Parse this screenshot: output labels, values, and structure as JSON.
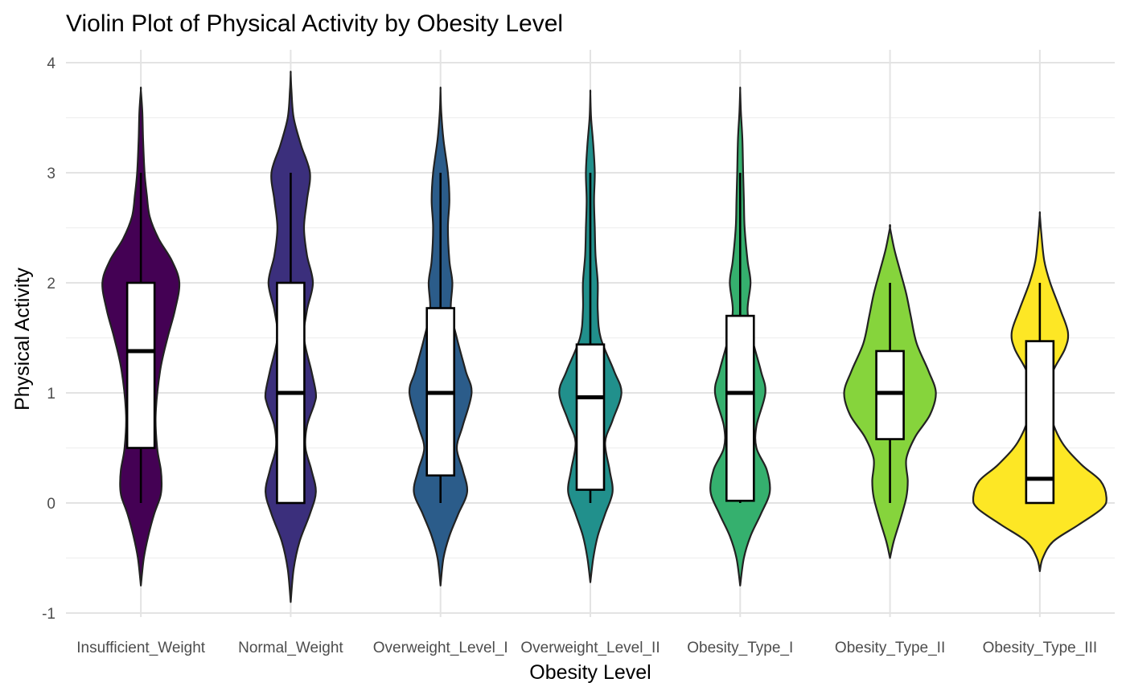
{
  "chart_data": {
    "type": "violin",
    "title": "Violin Plot of Physical Activity by Obesity Level",
    "xlabel": "Obesity Level",
    "ylabel": "Physical Activity",
    "ylim": [
      -1.1,
      4.13
    ],
    "yticks": [
      -1,
      0,
      1,
      2,
      3,
      4
    ],
    "ytick_labels": [
      "-1",
      "0",
      "1",
      "2",
      "3",
      "4"
    ],
    "grid": true,
    "legend": "none",
    "categories": [
      "Insufficient_Weight",
      "Normal_Weight",
      "Overweight_Level_I",
      "Overweight_Level_II",
      "Obesity_Type_I",
      "Obesity_Type_II",
      "Obesity_Type_III"
    ],
    "fill_colors": [
      "#440154",
      "#3B2F7C",
      "#2B5C8A",
      "#21908C",
      "#35B06E",
      "#86D43C",
      "#FDE725"
    ],
    "violins": [
      {
        "name": "Insufficient_Weight",
        "min_extent": -0.75,
        "max_extent": 3.75,
        "profile": [
          [
            -0.75,
            0
          ],
          [
            -0.5,
            0.04
          ],
          [
            -0.3,
            0.1
          ],
          [
            -0.1,
            0.18
          ],
          [
            0.05,
            0.26
          ],
          [
            0.15,
            0.28
          ],
          [
            0.3,
            0.27
          ],
          [
            0.5,
            0.22
          ],
          [
            0.8,
            0.2
          ],
          [
            1.2,
            0.26
          ],
          [
            1.5,
            0.36
          ],
          [
            1.75,
            0.46
          ],
          [
            2.0,
            0.52
          ],
          [
            2.2,
            0.42
          ],
          [
            2.4,
            0.24
          ],
          [
            2.6,
            0.12
          ],
          [
            2.8,
            0.08
          ],
          [
            3.0,
            0.05
          ],
          [
            3.3,
            0.03
          ],
          [
            3.55,
            0.02
          ],
          [
            3.75,
            0
          ]
        ],
        "q1": 0.5,
        "median": 1.38,
        "q3": 2.0,
        "whisker_low": 0.0,
        "whisker_high": 3.0
      },
      {
        "name": "Normal_Weight",
        "min_extent": -0.9,
        "max_extent": 3.9,
        "profile": [
          [
            -0.9,
            0
          ],
          [
            -0.6,
            0.04
          ],
          [
            -0.35,
            0.12
          ],
          [
            -0.1,
            0.26
          ],
          [
            0.1,
            0.34
          ],
          [
            0.3,
            0.28
          ],
          [
            0.5,
            0.2
          ],
          [
            0.7,
            0.22
          ],
          [
            0.9,
            0.32
          ],
          [
            1.0,
            0.34
          ],
          [
            1.2,
            0.28
          ],
          [
            1.5,
            0.18
          ],
          [
            1.75,
            0.22
          ],
          [
            2.0,
            0.3
          ],
          [
            2.25,
            0.22
          ],
          [
            2.5,
            0.18
          ],
          [
            2.75,
            0.22
          ],
          [
            3.0,
            0.26
          ],
          [
            3.25,
            0.14
          ],
          [
            3.5,
            0.04
          ],
          [
            3.75,
            0.01
          ],
          [
            3.9,
            0
          ]
        ],
        "q1": 0.0,
        "median": 1.0,
        "q3": 2.0,
        "whisker_low": 0.0,
        "whisker_high": 3.0
      },
      {
        "name": "Overweight_Level_I",
        "min_extent": -0.75,
        "max_extent": 3.75,
        "profile": [
          [
            -0.75,
            0
          ],
          [
            -0.5,
            0.04
          ],
          [
            -0.3,
            0.12
          ],
          [
            -0.1,
            0.24
          ],
          [
            0.1,
            0.36
          ],
          [
            0.3,
            0.3
          ],
          [
            0.5,
            0.22
          ],
          [
            0.7,
            0.3
          ],
          [
            1.0,
            0.42
          ],
          [
            1.2,
            0.34
          ],
          [
            1.5,
            0.22
          ],
          [
            1.75,
            0.14
          ],
          [
            2.0,
            0.16
          ],
          [
            2.2,
            0.12
          ],
          [
            2.5,
            0.1
          ],
          [
            2.75,
            0.12
          ],
          [
            3.0,
            0.1
          ],
          [
            3.3,
            0.04
          ],
          [
            3.55,
            0.01
          ],
          [
            3.75,
            0
          ]
        ],
        "q1": 0.25,
        "median": 1.0,
        "q3": 1.77,
        "whisker_low": 0.0,
        "whisker_high": 3.0
      },
      {
        "name": "Overweight_Level_II",
        "min_extent": -0.72,
        "max_extent": 3.72,
        "profile": [
          [
            -0.72,
            0
          ],
          [
            -0.5,
            0.04
          ],
          [
            -0.3,
            0.1
          ],
          [
            -0.1,
            0.2
          ],
          [
            0.1,
            0.3
          ],
          [
            0.3,
            0.26
          ],
          [
            0.55,
            0.2
          ],
          [
            0.75,
            0.3
          ],
          [
            1.0,
            0.42
          ],
          [
            1.2,
            0.32
          ],
          [
            1.5,
            0.14
          ],
          [
            1.75,
            0.1
          ],
          [
            2.0,
            0.1
          ],
          [
            2.25,
            0.07
          ],
          [
            2.5,
            0.06
          ],
          [
            2.75,
            0.05
          ],
          [
            3.0,
            0.06
          ],
          [
            3.25,
            0.04
          ],
          [
            3.5,
            0.01
          ],
          [
            3.72,
            0
          ]
        ],
        "q1": 0.12,
        "median": 0.96,
        "q3": 1.44,
        "whisker_low": 0.0,
        "whisker_high": 3.0
      },
      {
        "name": "Obesity_Type_I",
        "min_extent": -0.75,
        "max_extent": 3.75,
        "profile": [
          [
            -0.75,
            0
          ],
          [
            -0.5,
            0.05
          ],
          [
            -0.3,
            0.14
          ],
          [
            -0.1,
            0.28
          ],
          [
            0.1,
            0.4
          ],
          [
            0.3,
            0.36
          ],
          [
            0.5,
            0.22
          ],
          [
            0.7,
            0.22
          ],
          [
            1.0,
            0.34
          ],
          [
            1.2,
            0.28
          ],
          [
            1.5,
            0.16
          ],
          [
            1.75,
            0.1
          ],
          [
            2.0,
            0.14
          ],
          [
            2.2,
            0.1
          ],
          [
            2.5,
            0.06
          ],
          [
            2.75,
            0.05
          ],
          [
            3.0,
            0.04
          ],
          [
            3.3,
            0.03
          ],
          [
            3.55,
            0.01
          ],
          [
            3.75,
            0
          ]
        ],
        "q1": 0.02,
        "median": 1.0,
        "q3": 1.7,
        "whisker_low": 0.0,
        "whisker_high": 3.0
      },
      {
        "name": "Obesity_Type_II",
        "min_extent": -0.5,
        "max_extent": 2.5,
        "profile": [
          [
            -0.5,
            0
          ],
          [
            -0.35,
            0.05
          ],
          [
            -0.15,
            0.14
          ],
          [
            0.05,
            0.22
          ],
          [
            0.2,
            0.24
          ],
          [
            0.4,
            0.22
          ],
          [
            0.6,
            0.34
          ],
          [
            0.8,
            0.54
          ],
          [
            1.0,
            0.62
          ],
          [
            1.2,
            0.52
          ],
          [
            1.45,
            0.36
          ],
          [
            1.7,
            0.28
          ],
          [
            1.9,
            0.22
          ],
          [
            2.1,
            0.14
          ],
          [
            2.3,
            0.06
          ],
          [
            2.5,
            0
          ]
        ],
        "q1": 0.58,
        "median": 1.0,
        "q3": 1.38,
        "whisker_low": 0.0,
        "whisker_high": 2.0
      },
      {
        "name": "Obesity_Type_III",
        "min_extent": -0.62,
        "max_extent": 2.62,
        "profile": [
          [
            -0.62,
            0
          ],
          [
            -0.5,
            0.04
          ],
          [
            -0.35,
            0.18
          ],
          [
            -0.2,
            0.52
          ],
          [
            -0.05,
            0.84
          ],
          [
            0.05,
            0.9
          ],
          [
            0.2,
            0.82
          ],
          [
            0.35,
            0.56
          ],
          [
            0.55,
            0.3
          ],
          [
            0.8,
            0.14
          ],
          [
            1.0,
            0.1
          ],
          [
            1.2,
            0.18
          ],
          [
            1.4,
            0.34
          ],
          [
            1.55,
            0.38
          ],
          [
            1.75,
            0.28
          ],
          [
            2.0,
            0.14
          ],
          [
            2.2,
            0.06
          ],
          [
            2.45,
            0.02
          ],
          [
            2.62,
            0
          ]
        ],
        "q1": 0.0,
        "median": 0.22,
        "q3": 1.47,
        "whisker_low": 0.0,
        "whisker_high": 2.0
      }
    ]
  }
}
